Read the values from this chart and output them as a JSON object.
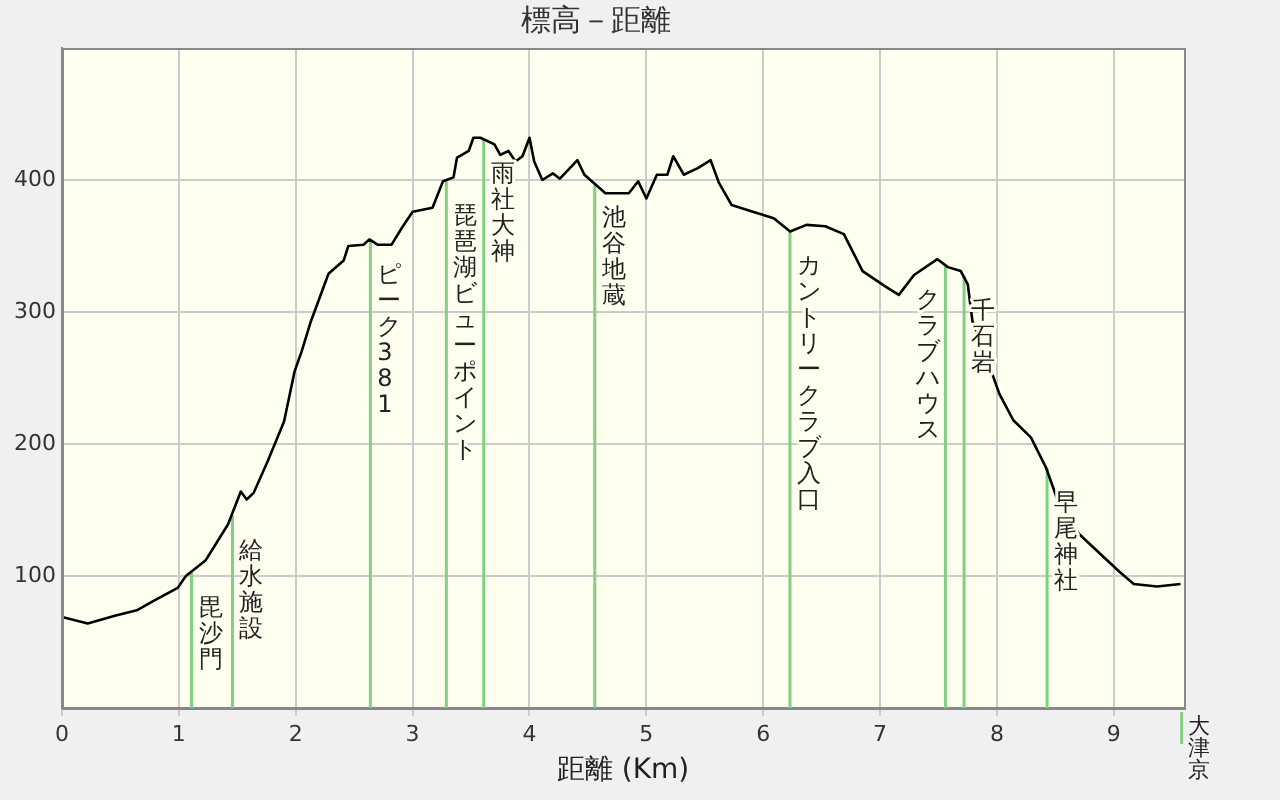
{
  "chart_data": {
    "type": "line",
    "title": "標高－距離",
    "xlabel": "距離 (Km)",
    "xlim": [
      0,
      9.6
    ],
    "xticks": [
      0,
      1,
      2,
      3,
      4,
      5,
      6,
      7,
      8,
      9
    ],
    "ylim": [
      0,
      500
    ],
    "yticks": [
      100,
      200,
      300,
      400
    ],
    "grid": true,
    "legend": false,
    "marker": "none",
    "series": [
      {
        "color": "#000000",
        "x": [
          0,
          0.22,
          0.46,
          0.64,
          0.78,
          0.99,
          1.06,
          1.23,
          1.42,
          1.53,
          1.58,
          1.64,
          1.76,
          1.9,
          1.99,
          2.05,
          2.13,
          2.28,
          2.41,
          2.45,
          2.58,
          2.63,
          2.7,
          2.82,
          2.91,
          3.0,
          3.17,
          3.26,
          3.35,
          3.38,
          3.48,
          3.52,
          3.58,
          3.7,
          3.75,
          3.82,
          3.88,
          3.94,
          4.0,
          4.04,
          4.11,
          4.2,
          4.26,
          4.41,
          4.47,
          4.65,
          4.85,
          4.93,
          5.0,
          5.09,
          5.18,
          5.23,
          5.32,
          5.44,
          5.55,
          5.62,
          5.73,
          5.91,
          6.09,
          6.23,
          6.37,
          6.53,
          6.69,
          6.85,
          7.05,
          7.16,
          7.29,
          7.49,
          7.58,
          7.69,
          7.75,
          7.79,
          7.88,
          8.02,
          8.14,
          8.29,
          8.42,
          8.52,
          8.7,
          8.88,
          9.05,
          9.17,
          9.37,
          9.57
        ],
        "values": [
          69,
          64,
          70,
          74,
          81,
          91,
          100,
          112,
          139,
          164,
          158,
          163,
          187,
          217,
          255,
          270,
          293,
          329,
          339,
          350,
          351,
          355,
          351,
          351,
          364,
          376,
          379,
          399,
          402,
          417,
          422,
          432,
          432,
          427,
          419,
          422,
          414,
          418,
          432,
          414,
          400,
          405,
          401,
          415,
          404,
          390,
          390,
          399,
          386,
          404,
          404,
          418,
          404,
          409,
          415,
          398,
          381,
          376,
          371,
          361,
          366,
          365,
          359,
          331,
          319,
          313,
          328,
          340,
          334,
          331,
          321,
          293,
          273,
          238,
          218,
          205,
          182,
          157,
          132,
          117,
          103,
          94,
          92,
          94
        ]
      }
    ],
    "ref_lines": [
      {
        "axis": "x",
        "value": 1.1,
        "label": "毘沙門",
        "color": "#80d080"
      },
      {
        "axis": "x",
        "value": 1.45,
        "label": "給水施設",
        "color": "#80d080"
      },
      {
        "axis": "x",
        "value": 2.63,
        "label": "ピーク381",
        "color": "#80d080"
      },
      {
        "axis": "x",
        "value": 3.28,
        "label": "琵琶湖ビューポイント",
        "color": "#80d080"
      },
      {
        "axis": "x",
        "value": 3.6,
        "label": "雨社大神",
        "color": "#80d080"
      },
      {
        "axis": "x",
        "value": 4.55,
        "label": "池谷地蔵",
        "color": "#80d080"
      },
      {
        "axis": "x",
        "value": 6.22,
        "label": "カントリークラブ入口",
        "color": "#80d080"
      },
      {
        "axis": "x",
        "value": 7.55,
        "label": "クラブハウス",
        "color": "#80d080"
      },
      {
        "axis": "x",
        "value": 7.71,
        "label": "千石岩",
        "color": "#80d080"
      },
      {
        "axis": "x",
        "value": 8.42,
        "label": "早尾神社",
        "color": "#80d080"
      },
      {
        "axis": "x",
        "value": 9.58,
        "label": "大津京",
        "color": "#80d080"
      }
    ]
  }
}
